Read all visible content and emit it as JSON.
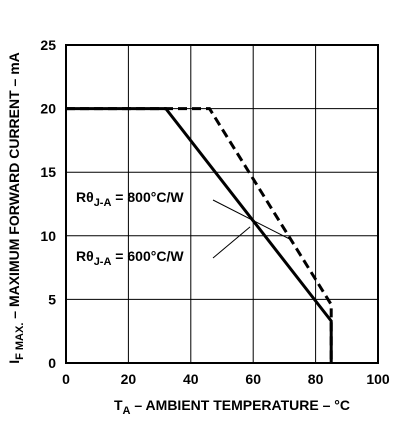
{
  "chart_data": {
    "type": "line",
    "title": "",
    "xlabel": {
      "main": "T",
      "sub": "A",
      "rest": " – AMBIENT TEMPERATURE – °C"
    },
    "ylabel": {
      "main": "I",
      "sub": "F MAX.",
      "rest": " – MAXIMUM FORWARD CURRENT – mA"
    },
    "xlim": [
      0,
      100
    ],
    "ylim": [
      0,
      25
    ],
    "xticks": [
      "0",
      "20",
      "40",
      "60",
      "80",
      "100"
    ],
    "yticks": [
      "0",
      "5",
      "10",
      "15",
      "20",
      "25"
    ],
    "grid": true,
    "series": [
      {
        "name": "600°C/W",
        "style": "solid",
        "x": [
          0,
          32,
          85,
          85
        ],
        "y": [
          20,
          20,
          3.3,
          0
        ]
      },
      {
        "name": "800°C/W",
        "style": "dashed",
        "x": [
          0,
          46,
          85,
          85
        ],
        "y": [
          20,
          20,
          4.6,
          0
        ]
      }
    ],
    "annotations": [
      {
        "main": "Rθ",
        "sub": "J-A",
        "rest": " = 800°C/W",
        "target_series": "800°C/W",
        "target_x": 72,
        "target_y": 9.7
      },
      {
        "main": "Rθ",
        "sub": "J-A",
        "rest": " = 600°C/W",
        "target_series": "600°C/W",
        "target_x": 59,
        "target_y": 10.7
      }
    ]
  }
}
